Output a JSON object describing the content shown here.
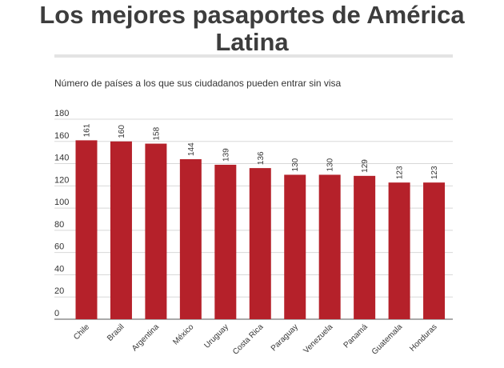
{
  "header": {
    "title_line1": "Los mejores pasaportes de América",
    "title_line2": "Latina",
    "subtitle": "Número de países a los que sus ciudadanos pueden entrar sin visa"
  },
  "chart_data": {
    "type": "bar",
    "title": "Los mejores pasaportes de América Latina",
    "subtitle": "Número de países a los que sus ciudadanos pueden entrar sin visa",
    "categories": [
      "Chile",
      "Brasil",
      "Argentina",
      "México",
      "Uruguay",
      "Costa Rica",
      "Paraguay",
      "Venezuela",
      "Panamá",
      "Guatemala",
      "Honduras"
    ],
    "values": [
      161,
      160,
      158,
      144,
      139,
      136,
      130,
      130,
      129,
      123,
      123
    ],
    "ylim": [
      0,
      180
    ],
    "yticks": [
      0,
      20,
      40,
      60,
      80,
      100,
      120,
      140,
      160,
      180
    ],
    "grid": true,
    "bar_color": "#b5212a",
    "data_labels": true
  }
}
